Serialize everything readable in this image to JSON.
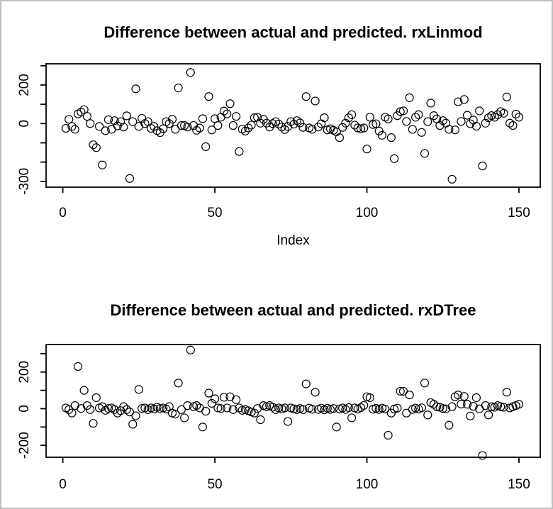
{
  "window": {
    "background_color": "#ffffff",
    "frame_border_color": "#bfbfbf"
  },
  "chart_data": [
    {
      "type": "scatter",
      "title": "Difference between actual and predicted. rxLinmod",
      "xlabel": "Index",
      "ylabel": "",
      "marker": "open-circle",
      "marker_color": "#000000",
      "n_points": 150,
      "x_is_index": true,
      "xlim": [
        -5.5,
        157
      ],
      "ylim": [
        -330,
        310
      ],
      "xticks": [
        0,
        50,
        100,
        150
      ],
      "xtick_labels": [
        "0",
        "50",
        "100",
        "150"
      ],
      "yticks": [
        -300,
        -200,
        -100,
        0,
        100,
        200,
        300
      ],
      "ytick_labeled": [
        -300,
        0,
        200
      ],
      "ytick_labels": [
        "-300",
        "0",
        "200"
      ],
      "grid": false,
      "legend": null,
      "values": [
        -25,
        22,
        -15,
        -30,
        50,
        60,
        72,
        37,
        0,
        -110,
        -125,
        -15,
        -215,
        -37,
        20,
        -30,
        15,
        -12,
        10,
        -18,
        40,
        -285,
        10,
        180,
        -15,
        27,
        0,
        10,
        -25,
        -15,
        -37,
        -47,
        -27,
        10,
        0,
        22,
        -30,
        185,
        -10,
        -10,
        -18,
        265,
        -10,
        -35,
        -23,
        25,
        -120,
        140,
        -33,
        25,
        -10,
        33,
        65,
        50,
        103,
        -10,
        37,
        -145,
        -29,
        -39,
        -23,
        -8,
        30,
        33,
        2,
        22,
        2,
        -18,
        0,
        10,
        -3,
        -18,
        -31,
        -15,
        10,
        -3,
        15,
        3,
        -20,
        140,
        -23,
        -30,
        117,
        -18,
        -1,
        30,
        -33,
        -27,
        -35,
        -43,
        -73,
        -20,
        2,
        30,
        46,
        -8,
        -23,
        -27,
        -23,
        -132,
        33,
        -5,
        -1,
        -39,
        -61,
        33,
        24,
        -73,
        -182,
        41,
        62,
        66,
        11,
        134,
        -30,
        33,
        46,
        -46,
        -155,
        10,
        106,
        41,
        24,
        -10,
        15,
        2,
        -30,
        -289,
        -33,
        113,
        11,
        125,
        43,
        -1,
        18,
        -14,
        66,
        -220,
        2,
        30,
        41,
        33,
        46,
        62,
        53,
        138,
        2,
        -10,
        49,
        33
      ]
    },
    {
      "type": "scatter",
      "title": "Difference between actual and predicted. rxDTree",
      "xlabel": "",
      "ylabel": "",
      "marker": "open-circle",
      "marker_color": "#000000",
      "n_points": 150,
      "x_is_index": true,
      "xlim": [
        -5.5,
        157
      ],
      "ylim": [
        -265,
        350
      ],
      "xticks": [
        0,
        50,
        100,
        150
      ],
      "xtick_labels": [
        "0",
        "50",
        "100",
        "150"
      ],
      "yticks": [
        -200,
        -100,
        0,
        100,
        200,
        300
      ],
      "ytick_labeled": [
        -200,
        0,
        200
      ],
      "ytick_labels": [
        "-200",
        "0",
        "200"
      ],
      "grid": false,
      "legend": null,
      "values": [
        4,
        -5,
        -24,
        17,
        230,
        1,
        100,
        17,
        -5,
        -80,
        60,
        4,
        11,
        -9,
        1,
        4,
        -5,
        -24,
        -11,
        11,
        -5,
        -18,
        -85,
        -39,
        105,
        1,
        4,
        -5,
        4,
        -2,
        8,
        1,
        4,
        -2,
        11,
        -24,
        -30,
        140,
        -5,
        -50,
        17,
        320,
        11,
        17,
        4,
        -100,
        -14,
        85,
        29,
        54,
        4,
        1,
        62,
        4,
        65,
        -5,
        49,
        4,
        -9,
        -5,
        -11,
        -18,
        -24,
        1,
        -60,
        17,
        11,
        17,
        8,
        -5,
        4,
        -1,
        4,
        -70,
        4,
        -1,
        -5,
        1,
        -5,
        135,
        3,
        -3,
        90,
        -4,
        3,
        -6,
        2,
        -4,
        1,
        -100,
        -2,
        4,
        -4,
        6,
        -50,
        4,
        -2,
        6,
        18,
        65,
        60,
        -3,
        2,
        -4,
        3,
        -2,
        -145,
        -24,
        -2,
        3,
        95,
        95,
        -24,
        75,
        -4,
        3,
        -2,
        5,
        140,
        -34,
        33,
        24,
        11,
        8,
        1,
        -1,
        -90,
        11,
        65,
        75,
        25,
        67,
        24,
        -40,
        13,
        60,
        -1,
        -255,
        17,
        -34,
        11,
        8,
        17,
        11,
        8,
        90,
        4,
        11,
        17,
        24
      ]
    }
  ]
}
